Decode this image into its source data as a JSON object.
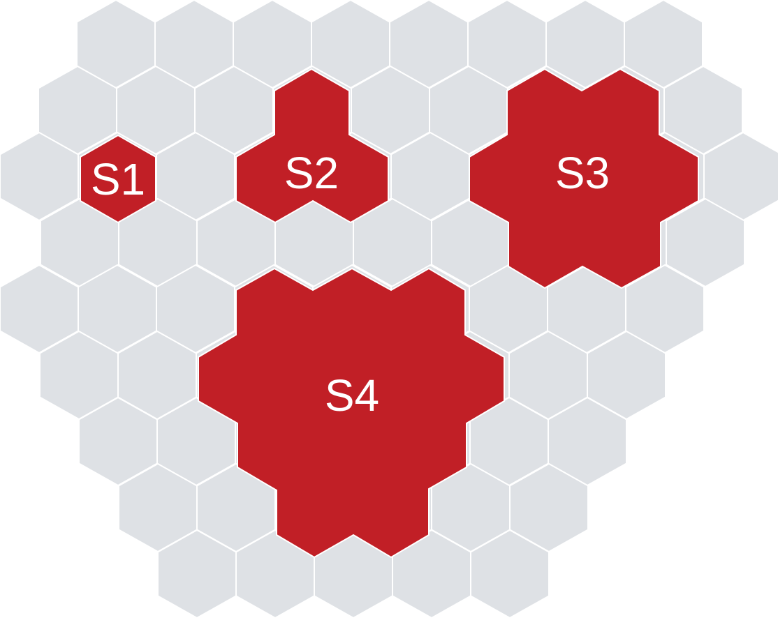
{
  "colors": {
    "cell_fill": "#dee1e5",
    "region_fill": "#c11f26",
    "cell_stroke": "#ffffff",
    "label_color": "#ffffff"
  },
  "regions": [
    {
      "id": "S1",
      "label": "S1"
    },
    {
      "id": "S2",
      "label": "S2"
    },
    {
      "id": "S3",
      "label": "S3"
    },
    {
      "id": "S4",
      "label": "S4"
    }
  ]
}
